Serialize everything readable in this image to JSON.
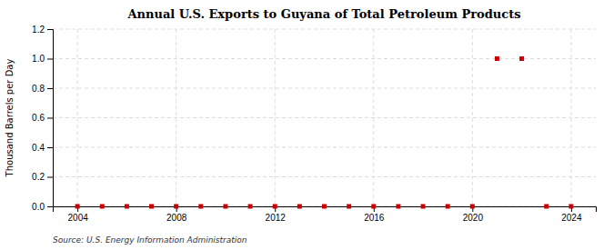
{
  "chart_data": {
    "type": "scatter",
    "title": "Annual U.S. Exports to Guyana of Total Petroleum Products",
    "ylabel": "Thousand Barrels per Day",
    "annotations": [
      "Source: U.S. Energy Information Administration"
    ],
    "x": [
      2004,
      2005,
      2006,
      2007,
      2008,
      2009,
      2010,
      2011,
      2012,
      2013,
      2014,
      2015,
      2016,
      2017,
      2018,
      2019,
      2020,
      2021,
      2022,
      2023,
      2024
    ],
    "values": [
      0.0,
      0.0,
      0.0,
      0.0,
      0.0,
      0.0,
      0.0,
      0.0,
      0.0,
      0.0,
      0.0,
      0.0,
      0.0,
      0.0,
      0.0,
      0.0,
      0.0,
      1.0,
      1.0,
      0.0,
      0.0
    ],
    "color": "#cc0000",
    "marker": "square",
    "xlim": [
      2003,
      2025
    ],
    "ylim": [
      0.0,
      1.2
    ],
    "xticks": [
      2004,
      2008,
      2012,
      2016,
      2020,
      2024
    ],
    "yticks": [
      {
        "value": 0,
        "label": "0.0"
      },
      0.2,
      0.4,
      0.6,
      0.8,
      {
        "value": 1,
        "label": "1.0"
      },
      1.2
    ],
    "grid": true
  }
}
